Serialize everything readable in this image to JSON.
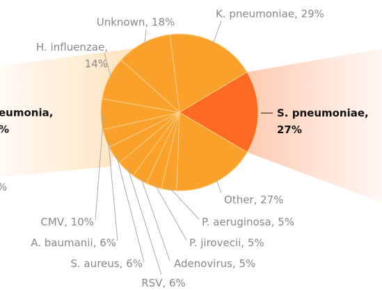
{
  "chart_data": {
    "type": "pie",
    "categories": [
      "K. pneumoniae,",
      "S. pneumoniae,",
      "Other,",
      "P. aeruginosa,",
      "P. jirovecii,",
      "Adenovirus,",
      "RSV,",
      "S. aureus,",
      "A. baumanii,",
      "CMV,",
      "H. influenzae,",
      "Unknown,"
    ],
    "values": [
      29,
      27,
      27,
      5,
      5,
      5,
      6,
      6,
      6,
      10,
      14,
      18
    ],
    "value_labels": [
      "29%",
      "27%",
      "27%",
      "5%",
      "5%",
      "5%",
      "6%",
      "6%",
      "6%",
      "10%",
      "14%",
      "18%"
    ],
    "colors": [
      "#f9a12a",
      "#fd6a24",
      "#f9a12a",
      "#f9a12a",
      "#f9a12a",
      "#f9a12a",
      "#f9a12a",
      "#f9a12a",
      "#f9a12a",
      "#f9a12a",
      "#f9a12a",
      "#f9a12a"
    ],
    "highlight": 1,
    "clipped_labels": [
      "eumonia,",
      "%",
      "%"
    ]
  }
}
